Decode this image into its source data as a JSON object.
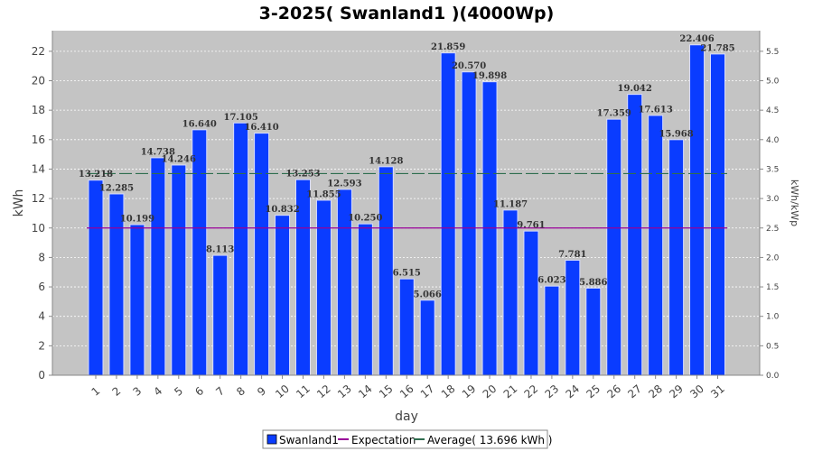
{
  "chart_data": {
    "type": "bar",
    "title": "3-2025( Swanland1 )(4000Wp)",
    "xlabel": "day",
    "ylabel": "kWh",
    "y2label": "kWh/kWp",
    "ylim": [
      0,
      23.4
    ],
    "y2lim": [
      0,
      5.85
    ],
    "yticks": [
      0,
      2,
      4,
      6,
      8,
      10,
      12,
      14,
      16,
      18,
      20,
      22
    ],
    "y2ticks": [
      "0.0",
      "0.5",
      "1.0",
      "1.5",
      "2.0",
      "2.5",
      "3.0",
      "3.5",
      "4.0",
      "4.5",
      "5.0",
      "5.5"
    ],
    "grid": true,
    "legend_position": "bottom",
    "categories": [
      "1",
      "2",
      "3",
      "4",
      "5",
      "6",
      "7",
      "8",
      "9",
      "10",
      "11",
      "12",
      "13",
      "14",
      "15",
      "16",
      "17",
      "18",
      "19",
      "20",
      "21",
      "22",
      "23",
      "24",
      "25",
      "26",
      "27",
      "28",
      "29",
      "30",
      "31"
    ],
    "series": [
      {
        "name": "Swanland1",
        "color": "#0a3cff",
        "values": [
          13.218,
          12.285,
          10.199,
          14.738,
          14.246,
          16.64,
          8.113,
          17.105,
          16.41,
          10.832,
          13.253,
          11.855,
          12.593,
          10.25,
          14.128,
          6.515,
          5.066,
          21.859,
          20.57,
          19.898,
          11.187,
          9.761,
          6.023,
          7.781,
          5.886,
          17.359,
          19.042,
          17.613,
          15.968,
          22.406,
          21.785
        ],
        "labels": [
          "13.218",
          "12.285",
          "10.199",
          "14.738",
          "14.246",
          "16.640",
          "8.113",
          "17.105",
          "16.410",
          "10.832",
          "13.253",
          "11.855",
          "12.593",
          "10.250",
          "14.128",
          "6.515",
          "5.066",
          "21.859",
          "20.570",
          "19.898",
          "11.187",
          "9.761",
          "6.023",
          "7.781",
          "5.886",
          "17.359",
          "19.042",
          "17.613",
          "15.968",
          "22.406",
          "21.785"
        ]
      }
    ],
    "reference_lines": [
      {
        "name": "Expectation",
        "value": 10.0,
        "color": "#990099",
        "style": "solid"
      },
      {
        "name": "Average( 13.696 kWh )",
        "value": 13.696,
        "color": "#2f6e4f",
        "style": "dashed"
      }
    ],
    "legend": [
      "Swanland1",
      "Expectation",
      "Average( 13.696 kWh )"
    ]
  }
}
